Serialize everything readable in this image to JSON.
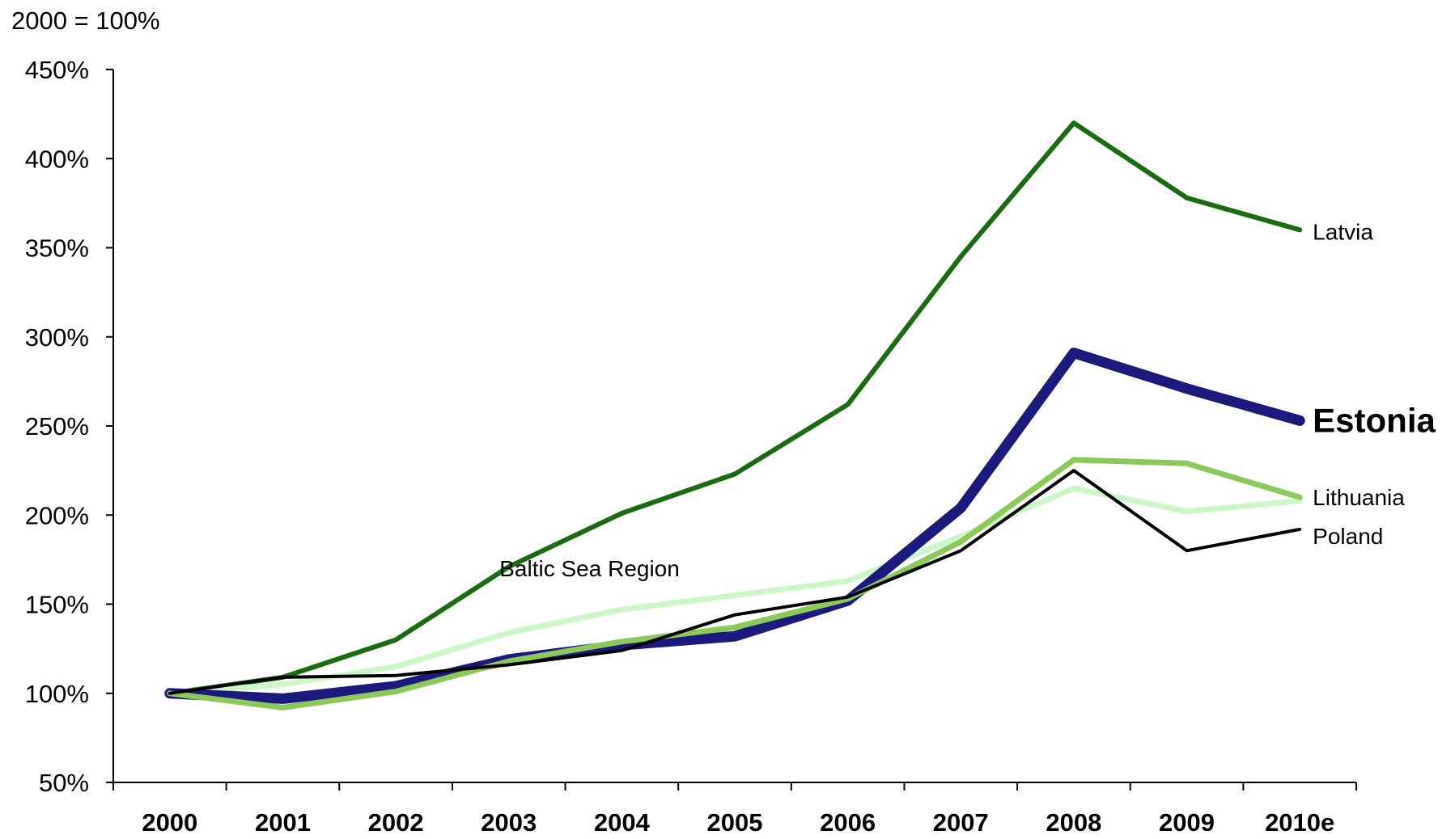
{
  "chart_data": {
    "type": "line",
    "unit_label": "2000 = 100%",
    "categories": [
      "2000",
      "2001",
      "2002",
      "2003",
      "2004",
      "2005",
      "2006",
      "2007",
      "2008",
      "2009",
      "2010e"
    ],
    "ylim": [
      50,
      450
    ],
    "y_ticks": [
      50,
      100,
      150,
      200,
      250,
      300,
      350,
      400,
      450
    ],
    "y_tick_labels": [
      "50%",
      "100%",
      "150%",
      "200%",
      "250%",
      "300%",
      "350%",
      "400%",
      "450%"
    ],
    "grid": false,
    "series": [
      {
        "name": "Latvia",
        "color": "#1a6b12",
        "emphasis": false,
        "values": [
          100,
          109,
          130,
          171,
          201,
          223,
          262,
          345,
          420,
          378,
          360
        ]
      },
      {
        "name": "Estonia",
        "color": "#1c1a7d",
        "emphasis": true,
        "values": [
          100,
          97,
          104,
          119,
          127,
          132,
          152,
          204,
          291,
          271,
          253
        ]
      },
      {
        "name": "Lithuania",
        "color": "#8cc85a",
        "emphasis": false,
        "values": [
          100,
          92,
          101,
          118,
          129,
          137,
          153,
          185,
          231,
          229,
          210
        ]
      },
      {
        "name": "Poland",
        "color": "#000000",
        "emphasis": false,
        "values": [
          100,
          109,
          110,
          116,
          124,
          144,
          154,
          180,
          225,
          180,
          192
        ]
      },
      {
        "name": "Baltic Sea Region",
        "color": "#ccf5c8",
        "emphasis": false,
        "values": [
          100,
          105,
          115,
          134,
          147,
          155,
          163,
          188,
          215,
          202,
          208
        ]
      }
    ],
    "annotations": [
      {
        "text": "Baltic Sea Region",
        "series": "Baltic Sea Region"
      }
    ]
  }
}
